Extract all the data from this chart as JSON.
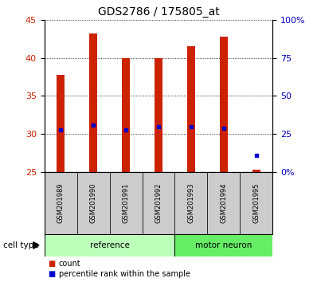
{
  "title": "GDS2786 / 175805_at",
  "samples": [
    "GSM201989",
    "GSM201990",
    "GSM201991",
    "GSM201992",
    "GSM201993",
    "GSM201994",
    "GSM201995"
  ],
  "counts": [
    37.8,
    43.2,
    40.0,
    40.0,
    41.5,
    42.8,
    25.3
  ],
  "percentile_ranks": [
    30.5,
    31.2,
    30.5,
    31.0,
    31.0,
    30.8,
    27.2
  ],
  "groups": [
    "reference",
    "reference",
    "reference",
    "reference",
    "motor neuron",
    "motor neuron",
    "motor neuron"
  ],
  "bar_color": "#cc2200",
  "dot_color": "#0000cc",
  "ylim_left": [
    25,
    45
  ],
  "ylim_right": [
    0,
    100
  ],
  "yticks_left": [
    25,
    30,
    35,
    40,
    45
  ],
  "yticks_right": [
    0,
    25,
    50,
    75,
    100
  ],
  "reference_color": "#bbffbb",
  "motor_neuron_color": "#66ee66",
  "sample_bg_color": "#cccccc",
  "bar_width": 0.25,
  "baseline": 25
}
